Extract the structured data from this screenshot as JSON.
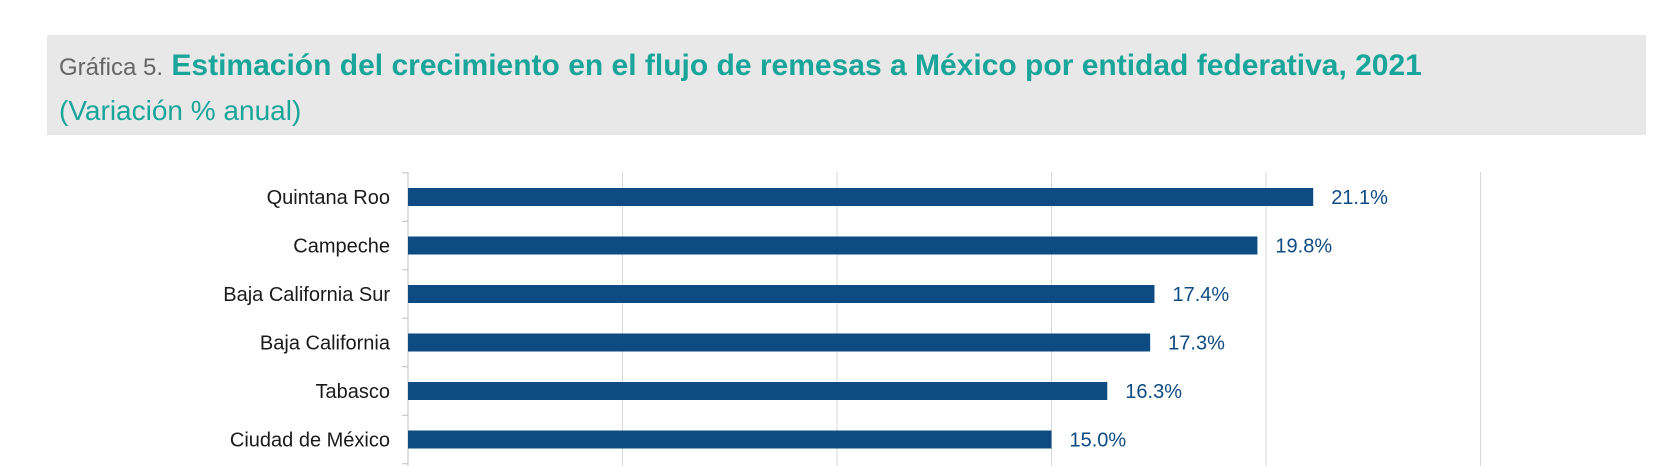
{
  "header": {
    "prefix": "Gráfica 5.",
    "title": "Estimación del crecimiento en el flujo de remesas a México por entidad federativa, 2021",
    "subtitle": "(Variación % anual)"
  },
  "colors": {
    "bar": "#0e4b83",
    "title": "#1aa59a",
    "header_bg": "#e8e8e8",
    "grid": "#d9d9d9"
  },
  "chart_data": {
    "type": "bar",
    "orientation": "horizontal",
    "categories": [
      "Quintana Roo",
      "Campeche",
      "Baja California Sur",
      "Baja California",
      "Tabasco",
      "Ciudad de México"
    ],
    "values": [
      21.1,
      19.8,
      17.4,
      17.3,
      16.3,
      15.0
    ],
    "labels": [
      "21.1%",
      "19.8%",
      "17.4%",
      "17.3%",
      "16.3%",
      "15.0%"
    ],
    "xlim": [
      0,
      25
    ],
    "grid": true,
    "legend": "none"
  }
}
